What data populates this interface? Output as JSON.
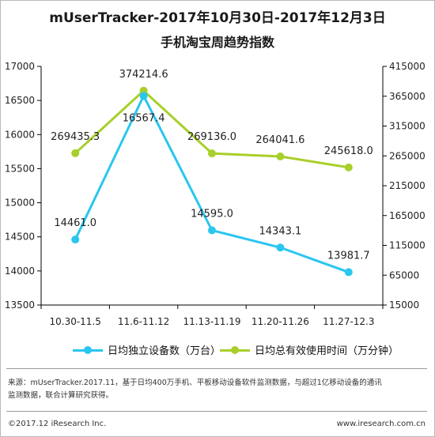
{
  "header": {
    "title_line1": "mUserTracker-2017年10月30日-2017年12月3日",
    "title_line2": "手机淘宝周趋势指数"
  },
  "colors": {
    "series1": "#29c6f0",
    "series2": "#a8cf2a",
    "axis": "#000000"
  },
  "legend": {
    "item1": "日均独立设备数（万台）",
    "item2": "日均总有效使用时间（万分钟）"
  },
  "chart_data": {
    "type": "line",
    "categories": [
      "10.30-11.5",
      "11.6-11.12",
      "11.13-11.19",
      "11.20-11.26",
      "11.27-12.3"
    ],
    "series": [
      {
        "name": "日均独立设备数（万台）",
        "axis": "left",
        "values": [
          14461.0,
          16567.4,
          14595.0,
          14343.1,
          13981.7
        ],
        "labels": [
          "14461.0",
          "16567.4",
          "14595.0",
          "14343.1",
          "13981.7"
        ]
      },
      {
        "name": "日均总有效使用时间（万分钟）",
        "axis": "right",
        "values": [
          269435.3,
          374214.6,
          269136.0,
          264041.6,
          245618.0
        ],
        "labels": [
          "269435.3",
          "374214.6",
          "269136.0",
          "264041.6",
          "245618.0"
        ]
      }
    ],
    "y_left": {
      "min": 13500,
      "max": 17000,
      "step": 500
    },
    "y_right": {
      "min": 15000,
      "max": 415000,
      "step": 50000
    },
    "grid": false,
    "legend_position": "bottom"
  },
  "note": {
    "line1": "来源：mUserTracker.2017.11，基于日均400万手机、平板移动设备软件监测数据，与超过1亿移动设备的通讯",
    "line2": "监测数据，联合计算研究获得。"
  },
  "footer": {
    "copyright": "©2017.12 iResearch Inc.",
    "website": "www.iresearch.com.cn"
  }
}
